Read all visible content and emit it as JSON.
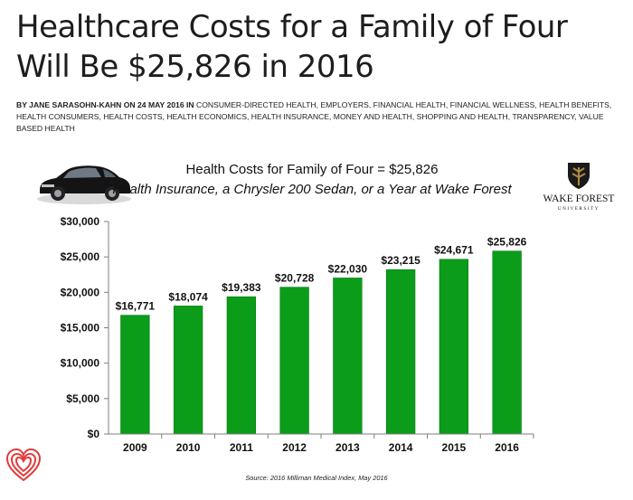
{
  "headline": "Healthcare Costs for a Family of Four Will Be $25,826 in 2016",
  "byline": {
    "prefix": "BY JANE SARASOHN-KAHN ON 24 MAY 2016 IN",
    "categories": "CONSUMER-DIRECTED HEALTH, EMPLOYERS, FINANCIAL HEALTH, FINANCIAL WELLNESS, HEALTH BENEFITS, HEALTH CONSUMERS, HEALTH COSTS, HEALTH ECONOMICS, HEALTH INSURANCE, MONEY AND HEALTH, SHOPPING AND HEALTH, TRANSPARENCY, VALUE BASED HEALTH"
  },
  "logo": {
    "line1": "WAKE FOREST",
    "line2": "UNIVERSITY",
    "icon": "shield-tree-icon"
  },
  "car_icon": "sedan-car-icon",
  "heart_icon": "concentric-heart-icon",
  "source": "Source: 2016 Milliman Medical Index, May 2016",
  "colors": {
    "bar": "#0b9c1a",
    "bar_edge": "#087a14",
    "gold": "#a2792a"
  },
  "chart_data": {
    "type": "bar",
    "title": "Health Costs for Family of Four = $25,826",
    "subtitle": "Health Insurance, a Chrysler 200 Sedan, or a Year at Wake Forest",
    "categories": [
      "2009",
      "2010",
      "2011",
      "2012",
      "2013",
      "2014",
      "2015",
      "2016"
    ],
    "values": [
      16771,
      18074,
      19383,
      20728,
      22030,
      23215,
      24671,
      25826
    ],
    "data_labels": [
      "$16,771",
      "$18,074",
      "$19,383",
      "$20,728",
      "$22,030",
      "$23,215",
      "$24,671",
      "$25,826"
    ],
    "ylim": [
      0,
      30000
    ],
    "yticks": [
      0,
      5000,
      10000,
      15000,
      20000,
      25000,
      30000
    ],
    "ytick_labels": [
      "$0",
      "$5,000",
      "$10,000",
      "$15,000",
      "$20,000",
      "$25,000",
      "$30,000"
    ],
    "grid": false,
    "legend": "none"
  }
}
